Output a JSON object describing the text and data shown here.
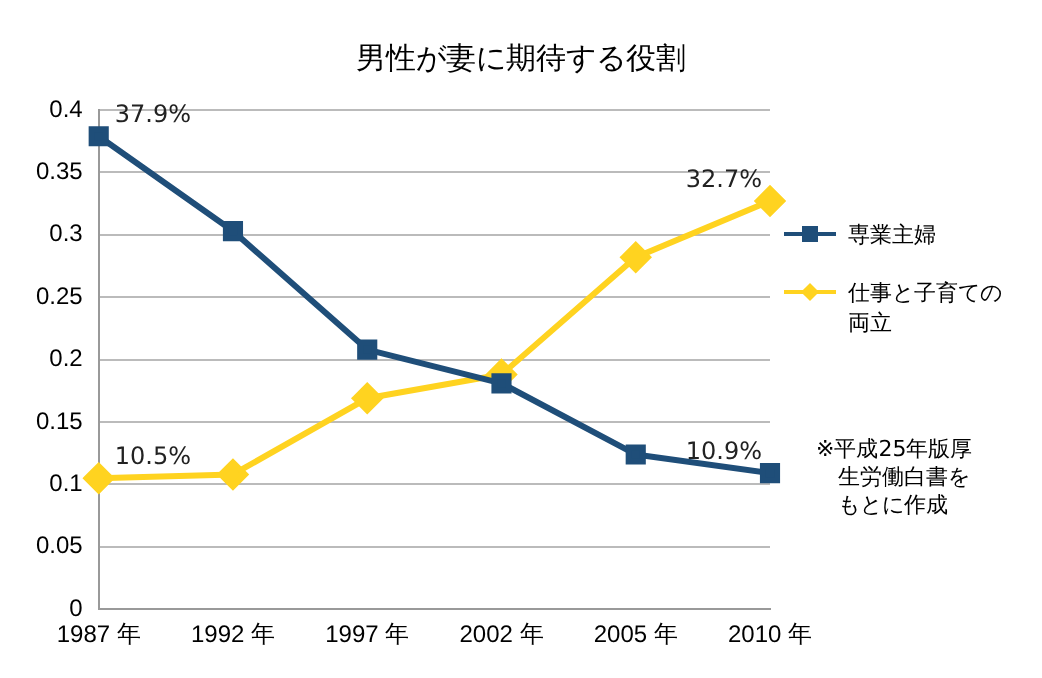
{
  "chart_data": {
    "type": "line",
    "title": "男性が妻に期待する役割",
    "categories": [
      "1987 年",
      "1992 年",
      "1997 年",
      "2002 年",
      "2005 年",
      "2010 年"
    ],
    "series": [
      {
        "name": "専業主婦",
        "color": "#1f4e79",
        "marker": "square",
        "values": [
          0.379,
          0.303,
          0.208,
          0.181,
          0.124,
          0.109
        ],
        "value_labels": [
          "37.9%",
          null,
          null,
          null,
          null,
          "10.9%"
        ]
      },
      {
        "name": "仕事と子育ての両立",
        "color": "#ffd320",
        "marker": "diamond",
        "values": [
          0.105,
          0.108,
          0.169,
          0.188,
          0.282,
          0.327
        ],
        "value_labels": [
          "10.5%",
          null,
          null,
          null,
          null,
          "32.7%"
        ]
      }
    ],
    "ylim": [
      0,
      0.4
    ],
    "yticks": [
      0,
      0.05,
      0.1,
      0.15,
      0.2,
      0.25,
      0.3,
      0.35,
      0.4
    ],
    "grid": "y",
    "legend": "right",
    "annotations": [
      "※平成25年版厚生労働白書をもとに作成"
    ]
  }
}
